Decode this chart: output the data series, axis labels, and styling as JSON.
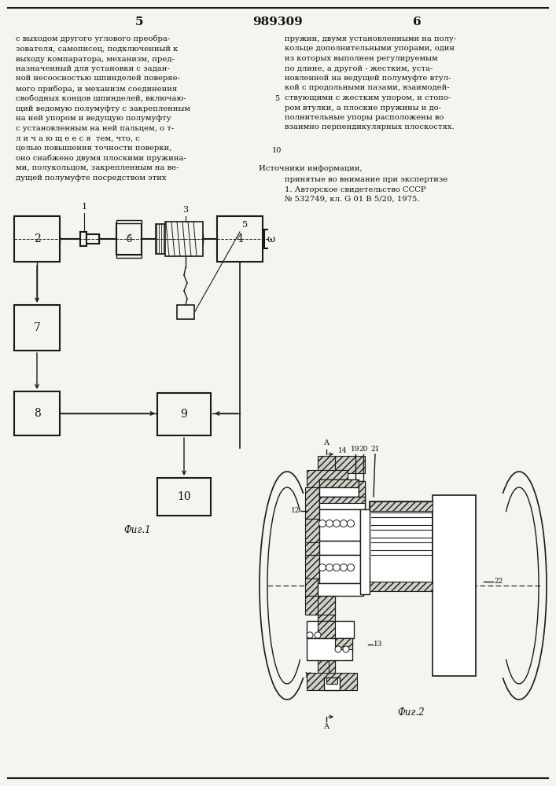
{
  "bg_color": "#f5f4ee",
  "line_color": "#1a1a1a",
  "text_color": "#111111",
  "header_text": "989309",
  "page_left": "5",
  "page_right": "6",
  "col1_text": "с выходом другого углового преобра-\nзователя, самописец, подключенный к\nвыходу компаратора, механизм, пред-\nназначенный для установки с задан-\nной несоосностью шпинделей поверяе-\nмого прибора, и механизм соединения\nсвободных концов шпинделей, включаю-\nщий ведомую полумуфту с закрепленным\nна ней упором и ведущую полумуфту\nс установленным на ней пальцем, о т-\nл и ч а ю щ е е с я  тем, что, с\nцелью повышения точности поверки,\nоно снабжено двумя плоскими пружина-\nми, полукольцом, закрепленным на ве-\nдущей полумуфте посредством этих",
  "col2_text": "пружин, двумя установленными на полу-\nкольце дополнительными упорами, один\nиз которых выполнен регулируемым\nпо длине, а другой - жестким, уста-\nновленной на ведущей полумуфте втул-\nкой с продольными пазами, взаимодей-\nствующими с жестким упором, и стопо-\nром втулки, а плоские пружины и до-\nполнительные упоры расположены во\nвзаимно перпендикулярных плоскостях.",
  "src_title": "Источники информации,",
  "src_body": "принятые во внимание при экспертизе\n1. Авторское свидетельство СССР\n№ 532749, кл. G 01 В 5/20, 1975.",
  "fig1_label": "Фиг.1",
  "fig2_label": "Фиг.2"
}
